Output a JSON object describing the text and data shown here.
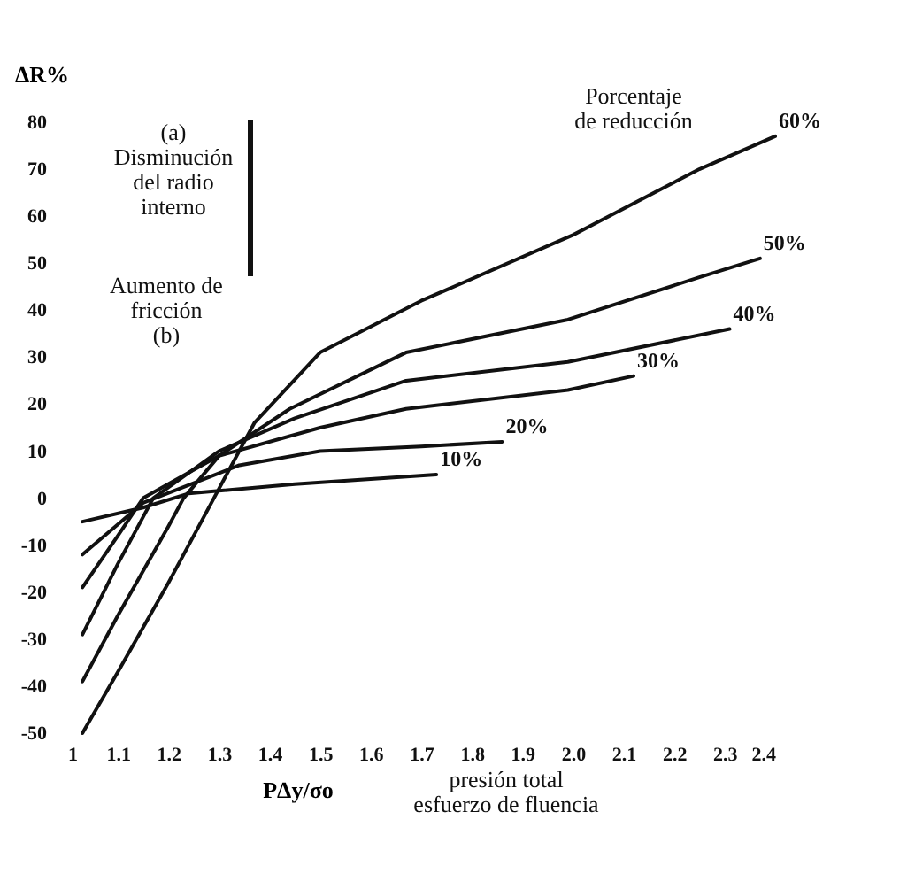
{
  "chart_data": {
    "type": "line",
    "xlabel": "PΔy/σo",
    "ylabel": "ΔR%",
    "xlim": [
      1,
      2.4
    ],
    "ylim": [
      -50,
      80
    ],
    "xticks": [
      1,
      1.1,
      1.2,
      1.3,
      1.4,
      1.5,
      1.6,
      1.7,
      1.8,
      1.9,
      {
        "value": 2,
        "label": "2.0"
      },
      2.1,
      2.2,
      2.3,
      2.4
    ],
    "yticks": [
      -50,
      -40,
      -30,
      -20,
      -10,
      0,
      10,
      20,
      30,
      40,
      50,
      60,
      70,
      80
    ],
    "grid": false,
    "marker": "none",
    "line_style": "solid",
    "annotations": [
      "(a)\nDisminución\ndel radio\ninterno",
      "Aumento de\nfricción\n(b)",
      "Porcentaje\nde reducción",
      "presión total\nesfuerzo de fluencia"
    ],
    "series": [
      {
        "name": "60%",
        "color": "#111111",
        "x": [
          1.03,
          1.1,
          1.2,
          1.29,
          1.37,
          1.5,
          1.7,
          2.0,
          2.25,
          2.4
        ],
        "values": [
          -50,
          -37,
          -18,
          0,
          16,
          31,
          42,
          56,
          70,
          77
        ]
      },
      {
        "name": "50%",
        "color": "#111111",
        "x": [
          1.03,
          1.1,
          1.2,
          1.23,
          1.3,
          1.44,
          1.67,
          1.99,
          2.25,
          2.37
        ],
        "values": [
          -39,
          -25,
          -6,
          0,
          9,
          19,
          31,
          38,
          47,
          51
        ]
      },
      {
        "name": "40%",
        "color": "#111111",
        "x": [
          1.03,
          1.1,
          1.17,
          1.3,
          1.45,
          1.67,
          1.99,
          2.31
        ],
        "values": [
          -29,
          -14,
          0,
          10,
          17,
          25,
          29,
          36
        ]
      },
      {
        "name": "30%",
        "color": "#111111",
        "x": [
          1.03,
          1.1,
          1.15,
          1.3,
          1.5,
          1.67,
          1.99,
          2.12
        ],
        "values": [
          -19,
          -8,
          0,
          9,
          15,
          19,
          23,
          26
        ]
      },
      {
        "name": "20%",
        "color": "#111111",
        "x": [
          1.03,
          1.15,
          1.34,
          1.5,
          1.7,
          1.86
        ],
        "values": [
          -12,
          -1,
          7,
          10,
          11,
          12
        ]
      },
      {
        "name": "10%",
        "color": "#111111",
        "x": [
          1.03,
          1.15,
          1.24,
          1.45,
          1.73
        ],
        "values": [
          -5,
          -2,
          1,
          3,
          5
        ]
      }
    ]
  }
}
